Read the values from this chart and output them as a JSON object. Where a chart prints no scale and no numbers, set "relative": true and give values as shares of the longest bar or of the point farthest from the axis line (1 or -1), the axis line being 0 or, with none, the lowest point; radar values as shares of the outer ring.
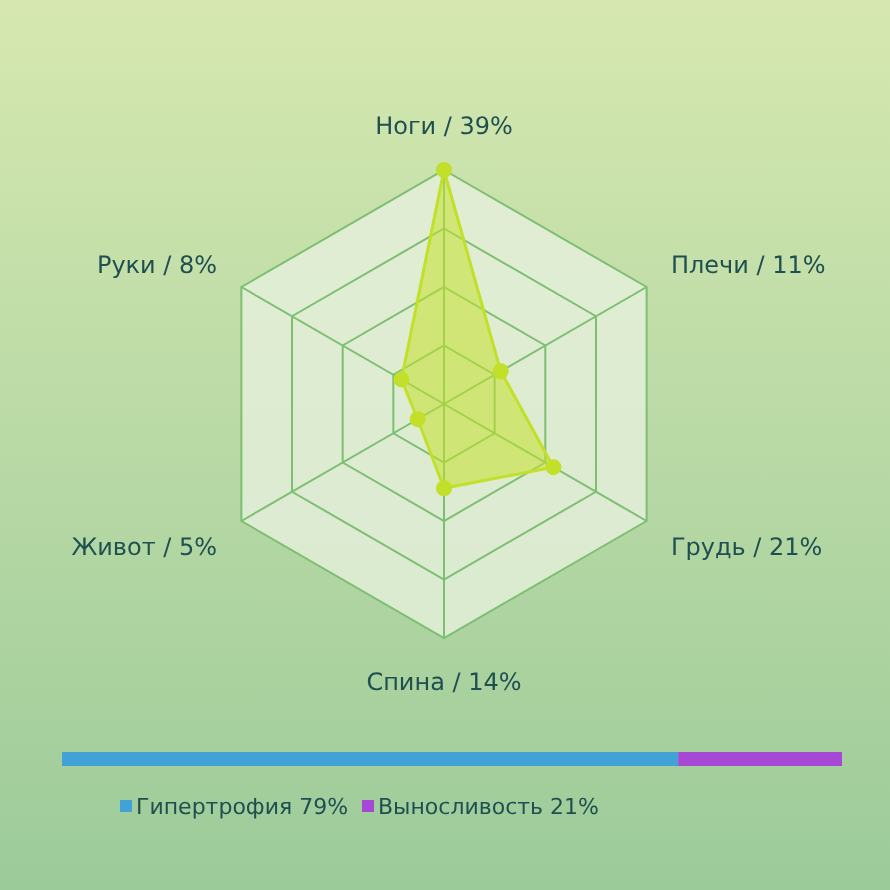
{
  "chart_data": [
    {
      "type": "radar",
      "relative": true,
      "categories": [
        "Ноги / 39%",
        "Плечи / 11%",
        "Грудь / 21%",
        "Спина / 14%",
        "Живот / 5%",
        "Руки / 8%"
      ],
      "grid": true,
      "marker": "circle",
      "series": [
        {
          "color": "#c2e02a",
          "values": [
            1,
            0.28,
            0.54,
            0.36,
            0.13,
            0.21
          ]
        }
      ]
    },
    {
      "type": "bar",
      "orientation": "horizontal",
      "stacked": true,
      "relative": true,
      "categories": [
        null
      ],
      "legend": "bottom",
      "series": [
        {
          "name": "Гипертрофия 79%",
          "color": "#42a1d6",
          "values": [
            0.79
          ]
        },
        {
          "name": "Выносливость 21%",
          "color": "#a747d6",
          "values": [
            0.21
          ]
        }
      ]
    }
  ]
}
